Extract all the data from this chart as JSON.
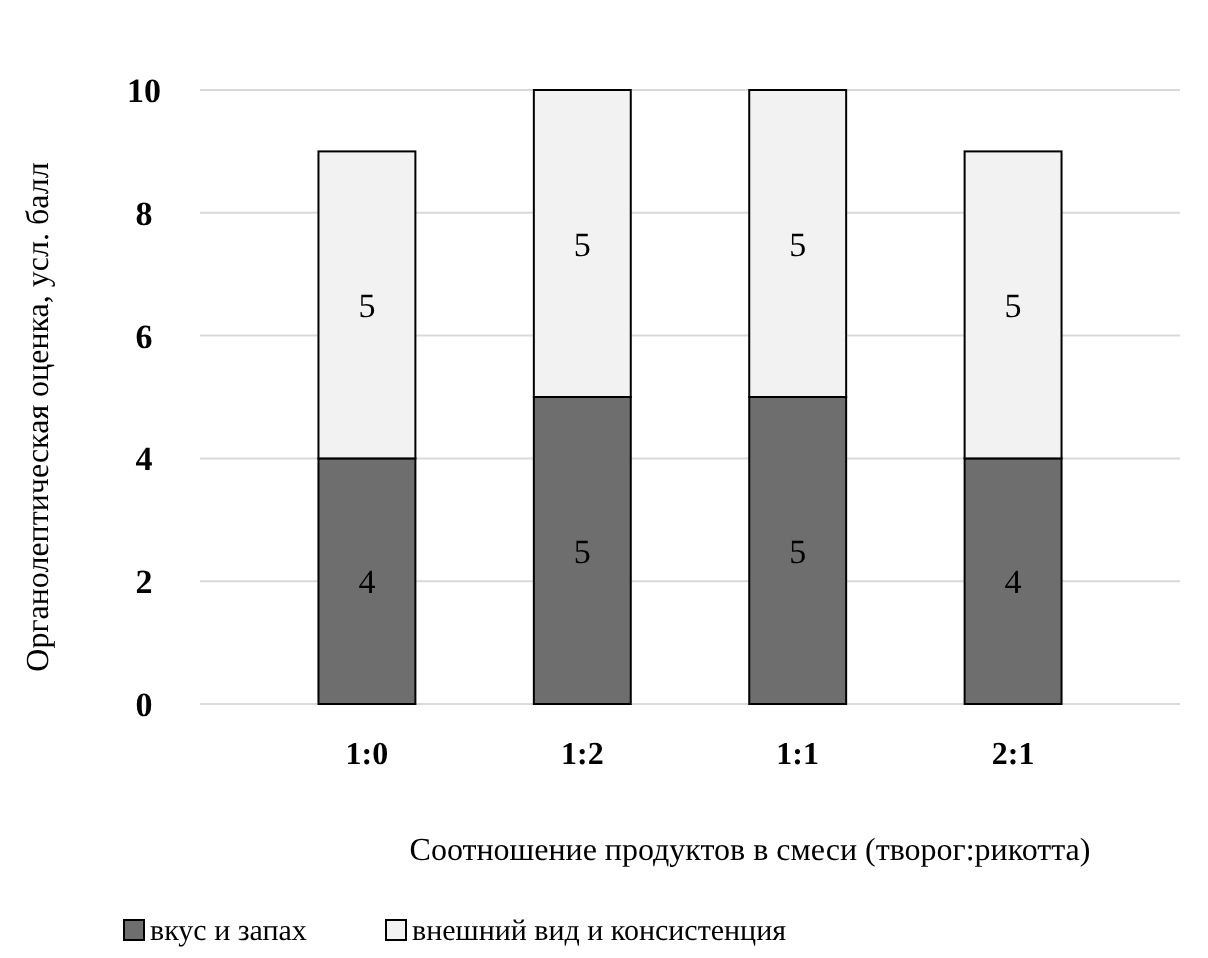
{
  "chart_data": {
    "type": "bar",
    "stacked": true,
    "xlabel": "Соотношение продуктов в смеси (творог:рикотта)",
    "ylabel": "Органолептическая оценка, усл. балл",
    "categories": [
      "1:0",
      "1:2",
      "1:1",
      "2:1"
    ],
    "series": [
      {
        "name": "вкус и запах",
        "color": "#6e6e6e",
        "values": [
          4,
          5,
          5,
          4
        ]
      },
      {
        "name": "внешний вид и консистенция",
        "color": "#f2f2f2",
        "values": [
          5,
          5,
          5,
          5
        ]
      }
    ],
    "ylim": [
      0,
      10
    ],
    "yticks": [
      0,
      2,
      4,
      6,
      8,
      10
    ],
    "grid": "y",
    "legend": "bottom",
    "data_labels": true
  }
}
